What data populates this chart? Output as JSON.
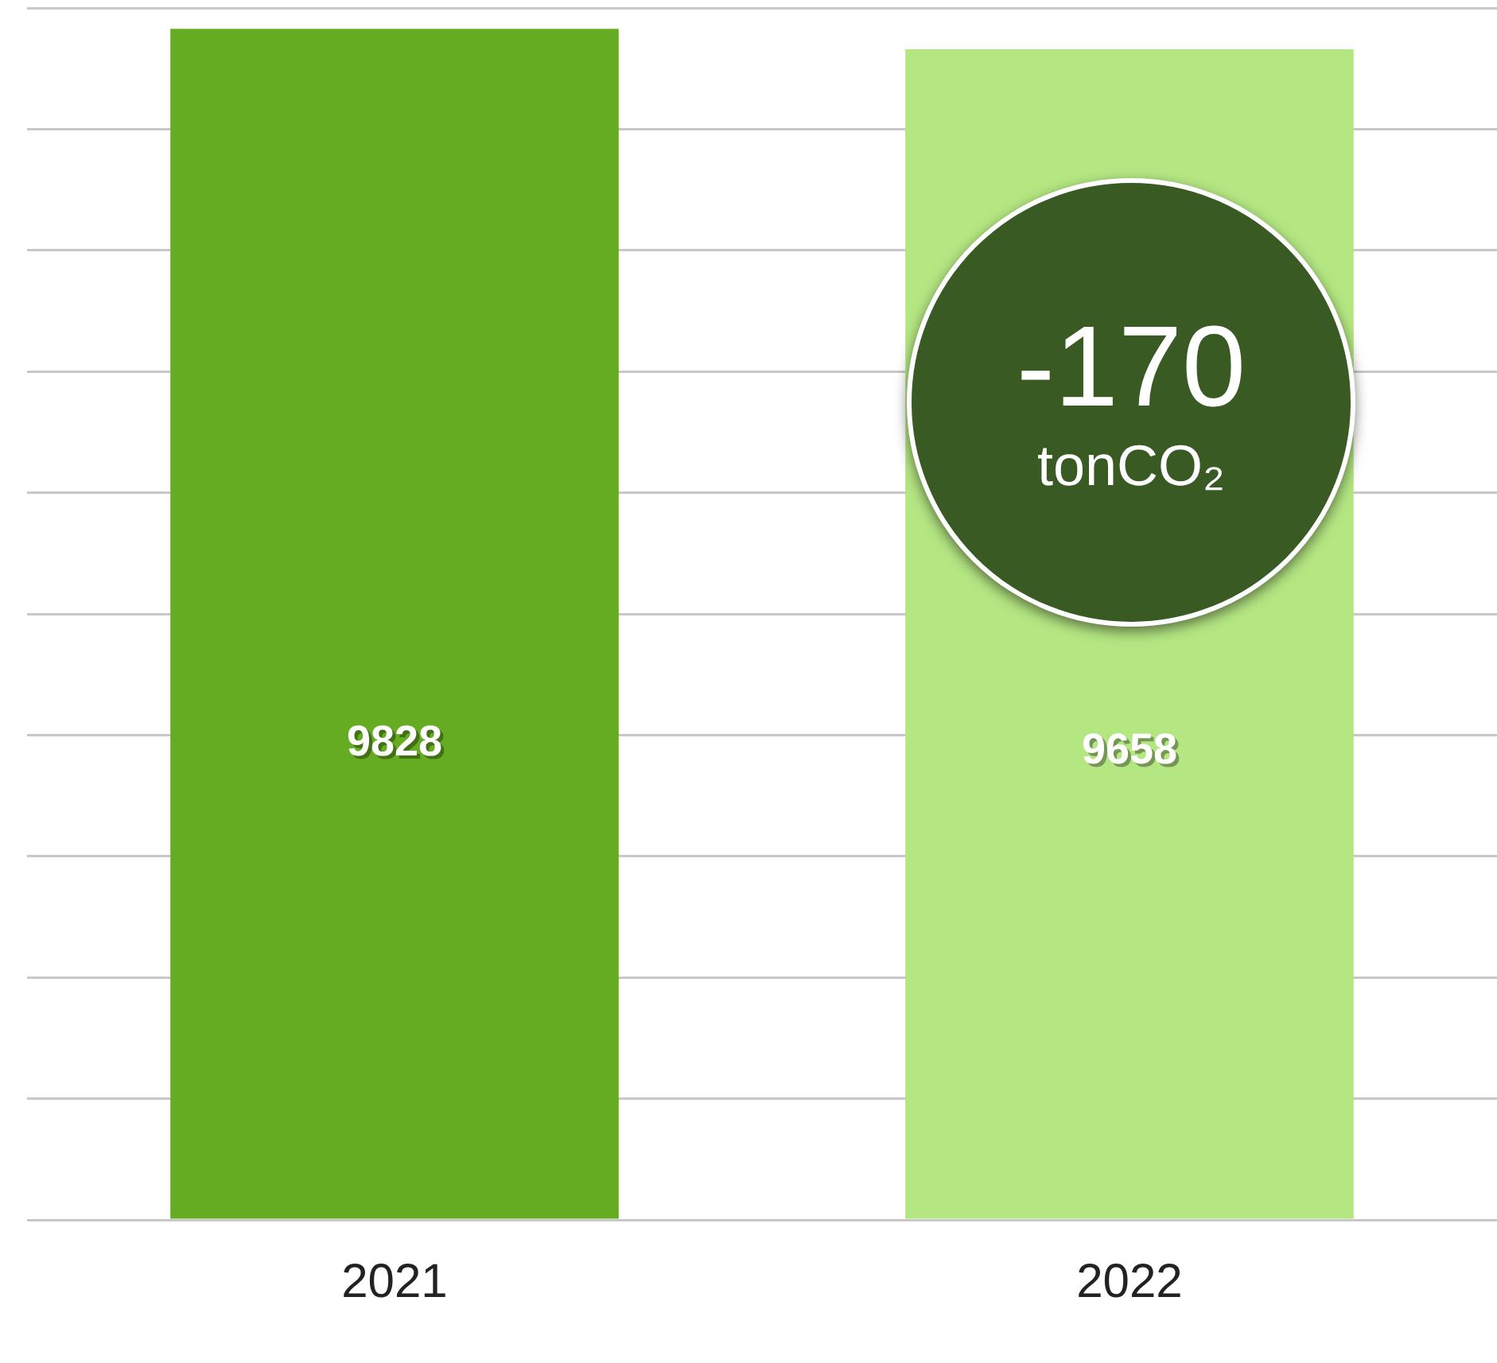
{
  "chart_data": {
    "type": "bar",
    "categories": [
      "2021",
      "2022"
    ],
    "values": [
      9828,
      9658
    ],
    "colors": [
      "#66ac22",
      "#b4e682"
    ],
    "grid": "y",
    "tick_labels": "x",
    "data_labels": true,
    "annotations": [
      "-170",
      "tonCO₂"
    ]
  }
}
